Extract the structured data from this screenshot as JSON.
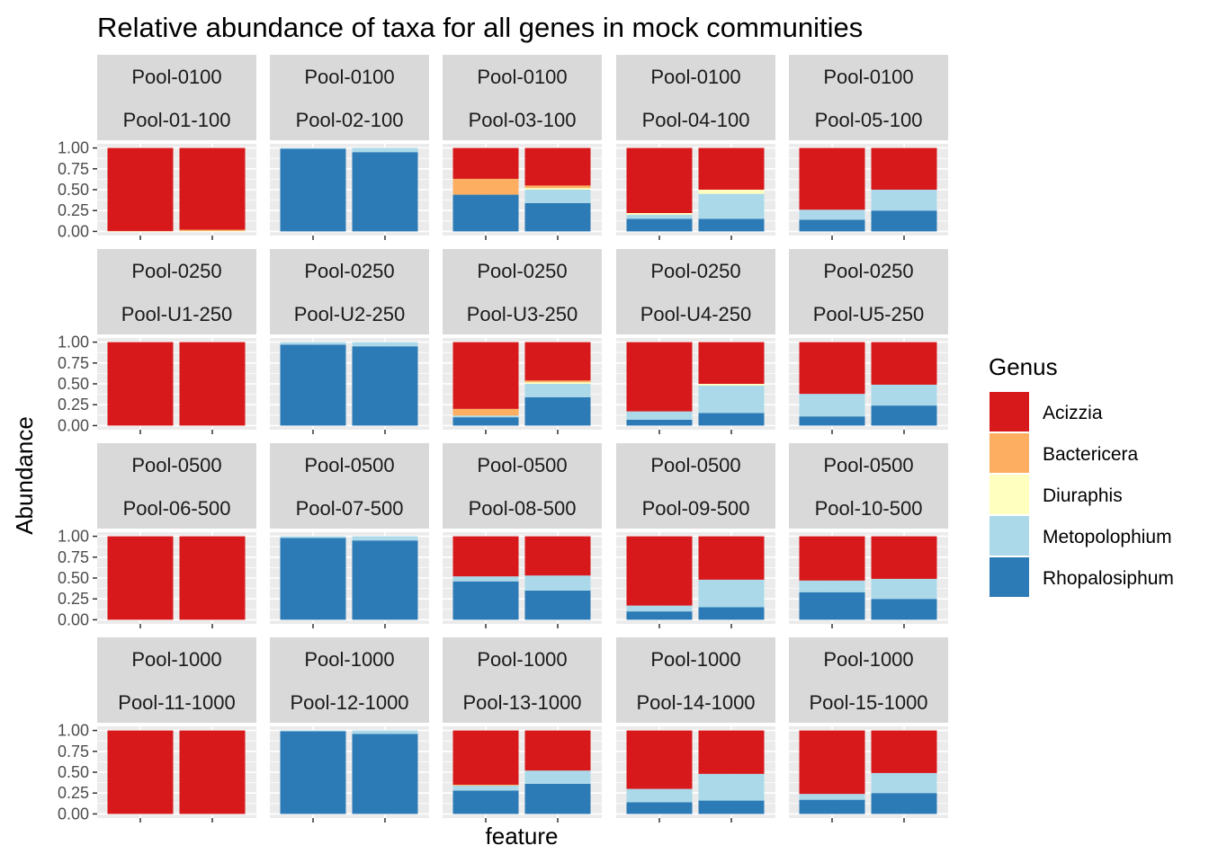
{
  "chart_data": {
    "type": "bar",
    "stacked": true,
    "title": "Relative abundance of taxa for all genes in mock communities",
    "xlabel": "feature",
    "ylabel": "Abundance",
    "ylim": [
      0,
      1
    ],
    "yticks": [
      "0.00",
      "0.25",
      "0.50",
      "0.75",
      "1.00"
    ],
    "grid": true,
    "legend": {
      "title": "Genus",
      "placement": "right",
      "items": [
        {
          "name": "Acizzia",
          "color": "#D7191C"
        },
        {
          "name": "Bactericera",
          "color": "#FDAE61"
        },
        {
          "name": "Diuraphis",
          "color": "#FFFFBF"
        },
        {
          "name": "Metopolophium",
          "color": "#ABD9E9"
        },
        {
          "name": "Rhopalosiphum",
          "color": "#2C7BB6"
        }
      ]
    },
    "stack_order": [
      "Rhopalosiphum",
      "Metopolophium",
      "Diuraphis",
      "Bactericera",
      "Acizzia"
    ],
    "facets": [
      {
        "row": "Pool-0100",
        "col": "Pool-01-100",
        "bars": [
          {
            "Rhopalosiphum": 0.0,
            "Metopolophium": 0.0,
            "Diuraphis": 0.0,
            "Bactericera": 0.005,
            "Acizzia": 0.995
          },
          {
            "Rhopalosiphum": 0.0,
            "Metopolophium": 0.0,
            "Diuraphis": 0.005,
            "Bactericera": 0.015,
            "Acizzia": 0.98
          }
        ]
      },
      {
        "row": "Pool-0100",
        "col": "Pool-02-100",
        "bars": [
          {
            "Rhopalosiphum": 0.99,
            "Metopolophium": 0.01,
            "Diuraphis": 0.0,
            "Bactericera": 0.0,
            "Acizzia": 0.0
          },
          {
            "Rhopalosiphum": 0.95,
            "Metopolophium": 0.05,
            "Diuraphis": 0.0,
            "Bactericera": 0.0,
            "Acizzia": 0.0
          }
        ]
      },
      {
        "row": "Pool-0100",
        "col": "Pool-03-100",
        "bars": [
          {
            "Rhopalosiphum": 0.44,
            "Metopolophium": 0.0,
            "Diuraphis": 0.0,
            "Bactericera": 0.19,
            "Acizzia": 0.37
          },
          {
            "Rhopalosiphum": 0.34,
            "Metopolophium": 0.16,
            "Diuraphis": 0.02,
            "Bactericera": 0.03,
            "Acizzia": 0.45
          }
        ]
      },
      {
        "row": "Pool-0100",
        "col": "Pool-04-100",
        "bars": [
          {
            "Rhopalosiphum": 0.15,
            "Metopolophium": 0.05,
            "Diuraphis": 0.02,
            "Bactericera": 0.0,
            "Acizzia": 0.78
          },
          {
            "Rhopalosiphum": 0.15,
            "Metopolophium": 0.3,
            "Diuraphis": 0.05,
            "Bactericera": 0.0,
            "Acizzia": 0.5
          }
        ]
      },
      {
        "row": "Pool-0100",
        "col": "Pool-05-100",
        "bars": [
          {
            "Rhopalosiphum": 0.14,
            "Metopolophium": 0.12,
            "Diuraphis": 0.0,
            "Bactericera": 0.0,
            "Acizzia": 0.74
          },
          {
            "Rhopalosiphum": 0.25,
            "Metopolophium": 0.25,
            "Diuraphis": 0.0,
            "Bactericera": 0.0,
            "Acizzia": 0.5
          }
        ]
      },
      {
        "row": "Pool-0250",
        "col": "Pool-U1-250",
        "bars": [
          {
            "Rhopalosiphum": 0.0,
            "Metopolophium": 0.0,
            "Diuraphis": 0.0,
            "Bactericera": 0.0,
            "Acizzia": 1.0
          },
          {
            "Rhopalosiphum": 0.0,
            "Metopolophium": 0.0,
            "Diuraphis": 0.0,
            "Bactericera": 0.0,
            "Acizzia": 1.0
          }
        ]
      },
      {
        "row": "Pool-0250",
        "col": "Pool-U2-250",
        "bars": [
          {
            "Rhopalosiphum": 0.97,
            "Metopolophium": 0.03,
            "Diuraphis": 0.0,
            "Bactericera": 0.0,
            "Acizzia": 0.0
          },
          {
            "Rhopalosiphum": 0.95,
            "Metopolophium": 0.05,
            "Diuraphis": 0.0,
            "Bactericera": 0.0,
            "Acizzia": 0.0
          }
        ]
      },
      {
        "row": "Pool-0250",
        "col": "Pool-U3-250",
        "bars": [
          {
            "Rhopalosiphum": 0.1,
            "Metopolophium": 0.02,
            "Diuraphis": 0.0,
            "Bactericera": 0.08,
            "Acizzia": 0.8
          },
          {
            "Rhopalosiphum": 0.34,
            "Metopolophium": 0.16,
            "Diuraphis": 0.02,
            "Bactericera": 0.02,
            "Acizzia": 0.46
          }
        ]
      },
      {
        "row": "Pool-0250",
        "col": "Pool-U4-250",
        "bars": [
          {
            "Rhopalosiphum": 0.07,
            "Metopolophium": 0.1,
            "Diuraphis": 0.0,
            "Bactericera": 0.0,
            "Acizzia": 0.83
          },
          {
            "Rhopalosiphum": 0.15,
            "Metopolophium": 0.33,
            "Diuraphis": 0.02,
            "Bactericera": 0.0,
            "Acizzia": 0.5
          }
        ]
      },
      {
        "row": "Pool-0250",
        "col": "Pool-U5-250",
        "bars": [
          {
            "Rhopalosiphum": 0.11,
            "Metopolophium": 0.27,
            "Diuraphis": 0.0,
            "Bactericera": 0.0,
            "Acizzia": 0.62
          },
          {
            "Rhopalosiphum": 0.24,
            "Metopolophium": 0.25,
            "Diuraphis": 0.0,
            "Bactericera": 0.0,
            "Acizzia": 0.51
          }
        ]
      },
      {
        "row": "Pool-0500",
        "col": "Pool-06-500",
        "bars": [
          {
            "Rhopalosiphum": 0.0,
            "Metopolophium": 0.0,
            "Diuraphis": 0.0,
            "Bactericera": 0.0,
            "Acizzia": 1.0
          },
          {
            "Rhopalosiphum": 0.0,
            "Metopolophium": 0.0,
            "Diuraphis": 0.0,
            "Bactericera": 0.0,
            "Acizzia": 1.0
          }
        ]
      },
      {
        "row": "Pool-0500",
        "col": "Pool-07-500",
        "bars": [
          {
            "Rhopalosiphum": 0.98,
            "Metopolophium": 0.02,
            "Diuraphis": 0.0,
            "Bactericera": 0.0,
            "Acizzia": 0.0
          },
          {
            "Rhopalosiphum": 0.95,
            "Metopolophium": 0.05,
            "Diuraphis": 0.0,
            "Bactericera": 0.0,
            "Acizzia": 0.0
          }
        ]
      },
      {
        "row": "Pool-0500",
        "col": "Pool-08-500",
        "bars": [
          {
            "Rhopalosiphum": 0.46,
            "Metopolophium": 0.06,
            "Diuraphis": 0.0,
            "Bactericera": 0.0,
            "Acizzia": 0.48
          },
          {
            "Rhopalosiphum": 0.35,
            "Metopolophium": 0.18,
            "Diuraphis": 0.0,
            "Bactericera": 0.0,
            "Acizzia": 0.47
          }
        ]
      },
      {
        "row": "Pool-0500",
        "col": "Pool-09-500",
        "bars": [
          {
            "Rhopalosiphum": 0.1,
            "Metopolophium": 0.07,
            "Diuraphis": 0.0,
            "Bactericera": 0.0,
            "Acizzia": 0.83
          },
          {
            "Rhopalosiphum": 0.15,
            "Metopolophium": 0.33,
            "Diuraphis": 0.0,
            "Bactericera": 0.0,
            "Acizzia": 0.52
          }
        ]
      },
      {
        "row": "Pool-0500",
        "col": "Pool-10-500",
        "bars": [
          {
            "Rhopalosiphum": 0.33,
            "Metopolophium": 0.14,
            "Diuraphis": 0.0,
            "Bactericera": 0.0,
            "Acizzia": 0.53
          },
          {
            "Rhopalosiphum": 0.25,
            "Metopolophium": 0.24,
            "Diuraphis": 0.0,
            "Bactericera": 0.0,
            "Acizzia": 0.51
          }
        ]
      },
      {
        "row": "Pool-1000",
        "col": "Pool-11-1000",
        "bars": [
          {
            "Rhopalosiphum": 0.0,
            "Metopolophium": 0.0,
            "Diuraphis": 0.0,
            "Bactericera": 0.0,
            "Acizzia": 1.0
          },
          {
            "Rhopalosiphum": 0.0,
            "Metopolophium": 0.0,
            "Diuraphis": 0.0,
            "Bactericera": 0.0,
            "Acizzia": 1.0
          }
        ]
      },
      {
        "row": "Pool-1000",
        "col": "Pool-12-1000",
        "bars": [
          {
            "Rhopalosiphum": 0.99,
            "Metopolophium": 0.01,
            "Diuraphis": 0.0,
            "Bactericera": 0.0,
            "Acizzia": 0.0
          },
          {
            "Rhopalosiphum": 0.96,
            "Metopolophium": 0.04,
            "Diuraphis": 0.0,
            "Bactericera": 0.0,
            "Acizzia": 0.0
          }
        ]
      },
      {
        "row": "Pool-1000",
        "col": "Pool-13-1000",
        "bars": [
          {
            "Rhopalosiphum": 0.28,
            "Metopolophium": 0.06,
            "Diuraphis": 0.0,
            "Bactericera": 0.01,
            "Acizzia": 0.65
          },
          {
            "Rhopalosiphum": 0.36,
            "Metopolophium": 0.16,
            "Diuraphis": 0.0,
            "Bactericera": 0.0,
            "Acizzia": 0.48
          }
        ]
      },
      {
        "row": "Pool-1000",
        "col": "Pool-14-1000",
        "bars": [
          {
            "Rhopalosiphum": 0.14,
            "Metopolophium": 0.16,
            "Diuraphis": 0.0,
            "Bactericera": 0.0,
            "Acizzia": 0.7
          },
          {
            "Rhopalosiphum": 0.16,
            "Metopolophium": 0.32,
            "Diuraphis": 0.0,
            "Bactericera": 0.0,
            "Acizzia": 0.52
          }
        ]
      },
      {
        "row": "Pool-1000",
        "col": "Pool-15-1000",
        "bars": [
          {
            "Rhopalosiphum": 0.17,
            "Metopolophium": 0.07,
            "Diuraphis": 0.0,
            "Bactericera": 0.0,
            "Acizzia": 0.76
          },
          {
            "Rhopalosiphum": 0.25,
            "Metopolophium": 0.24,
            "Diuraphis": 0.0,
            "Bactericera": 0.0,
            "Acizzia": 0.51
          }
        ]
      }
    ]
  }
}
